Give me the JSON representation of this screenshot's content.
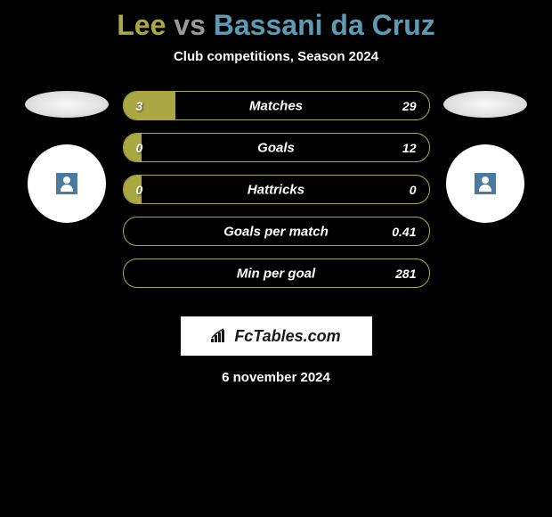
{
  "title": {
    "left": "Lee",
    "vs": "vs",
    "right": "Bassani da Cruz"
  },
  "subtitle": "Club competitions, Season 2024",
  "colors": {
    "left": "#a9a843",
    "right": "#5e9bb3",
    "background": "#000000",
    "text": "#ffffff"
  },
  "stats": [
    {
      "label": "Matches",
      "left_value": "3",
      "right_value": "29",
      "left_pct": 17,
      "right_pct": 0
    },
    {
      "label": "Goals",
      "left_value": "0",
      "right_value": "12",
      "left_pct": 6,
      "right_pct": 0
    },
    {
      "label": "Hattricks",
      "left_value": "0",
      "right_value": "0",
      "left_pct": 6,
      "right_pct": 0
    },
    {
      "label": "Goals per match",
      "left_value": "",
      "right_value": "0.41",
      "left_pct": 0,
      "right_pct": 0
    },
    {
      "label": "Min per goal",
      "left_value": "",
      "right_value": "281",
      "left_pct": 0,
      "right_pct": 0
    }
  ],
  "logo_text": "FcTables.com",
  "footer_date": "6 november 2024"
}
